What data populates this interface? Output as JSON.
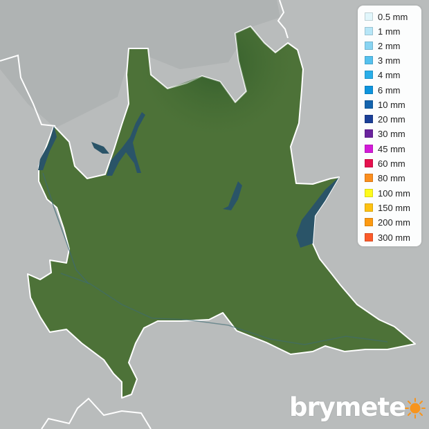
{
  "legend": {
    "items": [
      {
        "label": "0.5 mm",
        "color": "#e1f6fb"
      },
      {
        "label": "1 mm",
        "color": "#b7e6f7"
      },
      {
        "label": "2 mm",
        "color": "#88d4f2"
      },
      {
        "label": "3 mm",
        "color": "#55c1ee"
      },
      {
        "label": "4 mm",
        "color": "#29aee9"
      },
      {
        "label": "6 mm",
        "color": "#0e94dd"
      },
      {
        "label": "10 mm",
        "color": "#1464ae"
      },
      {
        "label": "20 mm",
        "color": "#1a3f97"
      },
      {
        "label": "30 mm",
        "color": "#6a239e"
      },
      {
        "label": "45 mm",
        "color": "#d31ad8"
      },
      {
        "label": "60 mm",
        "color": "#e5104e"
      },
      {
        "label": "80 mm",
        "color": "#fb8e1e"
      },
      {
        "label": "100 mm",
        "color": "#fefb1c"
      },
      {
        "label": "150 mm",
        "color": "#fec212"
      },
      {
        "label": "200 mm",
        "color": "#fd9a12"
      },
      {
        "label": "300 mm",
        "color": "#fb5a2a"
      }
    ]
  },
  "brand": {
    "name": "brymete",
    "icon": "sun-icon",
    "sun_color": "#f7941d"
  },
  "colors": {
    "background": "#b9bcbc",
    "region": "#4d7238",
    "water": "#2a5468",
    "border": "#ffffff"
  }
}
